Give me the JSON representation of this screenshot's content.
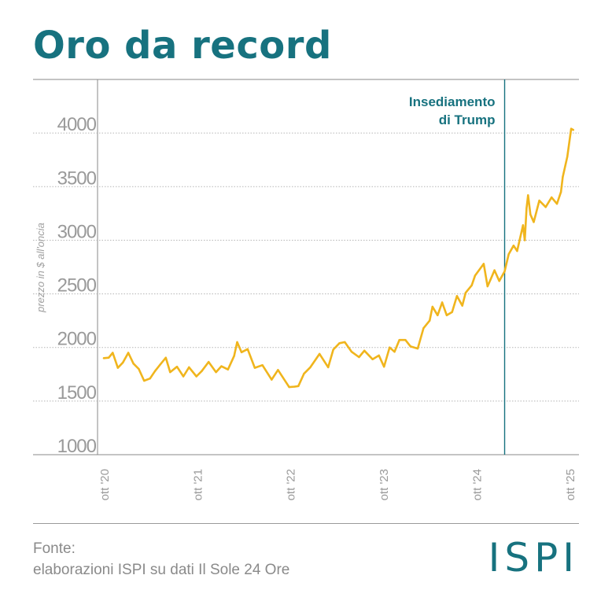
{
  "title": "Oro da record",
  "source": {
    "label": "Fonte:",
    "text": "elaborazioni ISPI su dati Il Sole 24 Ore"
  },
  "logo": "ISPI",
  "colors": {
    "brand": "#17727f",
    "line": "#f0b51d",
    "grid": "#b5b5b5",
    "tick_text": "#9a9a9a"
  },
  "chart_data": {
    "type": "line",
    "ylabel": "prezzo in $ all'oncia",
    "xlabel": "",
    "ylim": [
      1000,
      4500
    ],
    "yticks": [
      1000,
      1500,
      2000,
      2500,
      3000,
      3500,
      4000
    ],
    "xlim": [
      "2020-10-01",
      "2025-10-20"
    ],
    "xticks": [
      {
        "date": "2020-10-01",
        "label": "ott '20"
      },
      {
        "date": "2021-10-01",
        "label": "ott '21"
      },
      {
        "date": "2022-10-01",
        "label": "ott '22"
      },
      {
        "date": "2023-10-01",
        "label": "ott '23"
      },
      {
        "date": "2024-10-01",
        "label": "ott '24"
      },
      {
        "date": "2025-10-01",
        "label": "ott '25"
      }
    ],
    "grid": true,
    "annotation": {
      "date": "2025-01-20",
      "text": [
        "Insediamento",
        "di Trump"
      ]
    },
    "series": [
      {
        "points": [
          [
            "2020-10-01",
            1900
          ],
          [
            "2020-10-20",
            1905
          ],
          [
            "2020-11-05",
            1950
          ],
          [
            "2020-11-25",
            1810
          ],
          [
            "2020-12-15",
            1860
          ],
          [
            "2021-01-05",
            1950
          ],
          [
            "2021-01-25",
            1850
          ],
          [
            "2021-02-15",
            1800
          ],
          [
            "2021-03-08",
            1690
          ],
          [
            "2021-03-31",
            1710
          ],
          [
            "2021-04-20",
            1780
          ],
          [
            "2021-05-10",
            1840
          ],
          [
            "2021-06-01",
            1905
          ],
          [
            "2021-06-18",
            1770
          ],
          [
            "2021-07-15",
            1820
          ],
          [
            "2021-08-09",
            1730
          ],
          [
            "2021-08-31",
            1815
          ],
          [
            "2021-09-29",
            1730
          ],
          [
            "2021-10-20",
            1780
          ],
          [
            "2021-11-16",
            1865
          ],
          [
            "2021-12-15",
            1770
          ],
          [
            "2022-01-05",
            1825
          ],
          [
            "2022-01-31",
            1795
          ],
          [
            "2022-02-24",
            1920
          ],
          [
            "2022-03-08",
            2050
          ],
          [
            "2022-03-25",
            1955
          ],
          [
            "2022-04-18",
            1985
          ],
          [
            "2022-05-16",
            1810
          ],
          [
            "2022-06-15",
            1835
          ],
          [
            "2022-07-21",
            1700
          ],
          [
            "2022-08-15",
            1790
          ],
          [
            "2022-09-28",
            1630
          ],
          [
            "2022-10-20",
            1635
          ],
          [
            "2022-11-03",
            1640
          ],
          [
            "2022-11-25",
            1755
          ],
          [
            "2022-12-20",
            1815
          ],
          [
            "2023-01-25",
            1940
          ],
          [
            "2023-02-28",
            1815
          ],
          [
            "2023-03-20",
            1980
          ],
          [
            "2023-04-13",
            2040
          ],
          [
            "2023-05-04",
            2050
          ],
          [
            "2023-05-31",
            1960
          ],
          [
            "2023-06-29",
            1910
          ],
          [
            "2023-07-20",
            1970
          ],
          [
            "2023-08-21",
            1890
          ],
          [
            "2023-09-15",
            1925
          ],
          [
            "2023-10-05",
            1820
          ],
          [
            "2023-10-27",
            2000
          ],
          [
            "2023-11-15",
            1960
          ],
          [
            "2023-12-04",
            2070
          ],
          [
            "2023-12-28",
            2070
          ],
          [
            "2024-01-17",
            2010
          ],
          [
            "2024-02-14",
            1990
          ],
          [
            "2024-03-08",
            2180
          ],
          [
            "2024-04-01",
            2250
          ],
          [
            "2024-04-12",
            2380
          ],
          [
            "2024-05-02",
            2300
          ],
          [
            "2024-05-20",
            2420
          ],
          [
            "2024-06-07",
            2300
          ],
          [
            "2024-06-28",
            2330
          ],
          [
            "2024-07-17",
            2480
          ],
          [
            "2024-08-07",
            2390
          ],
          [
            "2024-08-20",
            2510
          ],
          [
            "2024-09-13",
            2580
          ],
          [
            "2024-09-26",
            2670
          ],
          [
            "2024-10-30",
            2780
          ],
          [
            "2024-11-14",
            2570
          ],
          [
            "2024-11-25",
            2630
          ],
          [
            "2024-12-11",
            2720
          ],
          [
            "2024-12-30",
            2620
          ],
          [
            "2025-01-20",
            2710
          ],
          [
            "2025-02-05",
            2870
          ],
          [
            "2025-02-24",
            2950
          ],
          [
            "2025-03-10",
            2900
          ],
          [
            "2025-04-02",
            3140
          ],
          [
            "2025-04-09",
            3000
          ],
          [
            "2025-04-16",
            3300
          ],
          [
            "2025-04-22",
            3420
          ],
          [
            "2025-05-01",
            3240
          ],
          [
            "2025-05-14",
            3170
          ],
          [
            "2025-06-05",
            3370
          ],
          [
            "2025-06-30",
            3310
          ],
          [
            "2025-07-23",
            3400
          ],
          [
            "2025-08-13",
            3340
          ],
          [
            "2025-08-29",
            3450
          ],
          [
            "2025-09-05",
            3590
          ],
          [
            "2025-09-23",
            3780
          ],
          [
            "2025-10-08",
            4040
          ],
          [
            "2025-10-16",
            4030
          ]
        ]
      }
    ]
  }
}
